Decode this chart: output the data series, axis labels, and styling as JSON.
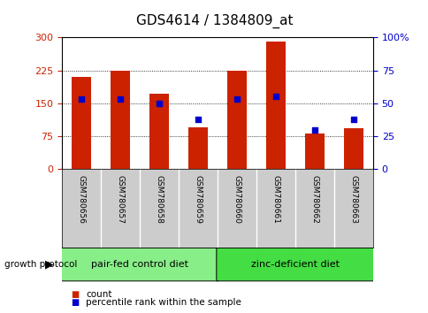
{
  "title": "GDS4614 / 1384809_at",
  "samples": [
    "GSM780656",
    "GSM780657",
    "GSM780658",
    "GSM780659",
    "GSM780660",
    "GSM780661",
    "GSM780662",
    "GSM780663"
  ],
  "counts": [
    210,
    224,
    172,
    95,
    224,
    291,
    82,
    93
  ],
  "percentiles": [
    53,
    53,
    50,
    38,
    53,
    55,
    30,
    38
  ],
  "groups": [
    {
      "label": "pair-fed control diet",
      "start": 0,
      "end": 4,
      "color": "#88ee88"
    },
    {
      "label": "zinc-deficient diet",
      "start": 4,
      "end": 8,
      "color": "#44dd44"
    }
  ],
  "group_label": "growth protocol",
  "left_yticks": [
    0,
    75,
    150,
    225,
    300
  ],
  "right_yticks": [
    0,
    25,
    50,
    75,
    100
  ],
  "ylim_left": [
    0,
    300
  ],
  "ylim_right": [
    0,
    100
  ],
  "bar_color": "#cc2200",
  "dot_color": "#0000cc",
  "bg_color": "#ffffff",
  "plot_bg": "#ffffff",
  "sample_label_bg": "#cccccc",
  "legend_count_label": "count",
  "legend_pct_label": "percentile rank within the sample",
  "title_fontsize": 11,
  "tick_fontsize": 8,
  "sample_fontsize": 6.5,
  "group_fontsize": 8,
  "legend_fontsize": 7.5
}
